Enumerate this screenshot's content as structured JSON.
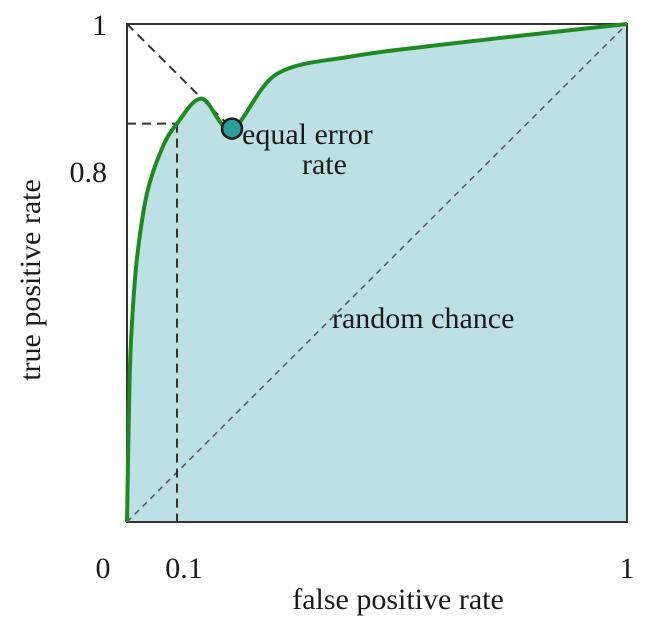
{
  "chart_data": {
    "type": "line",
    "title": "",
    "xlabel": "false positive rate",
    "ylabel": "true positive rate",
    "xlim": [
      0,
      1
    ],
    "ylim": [
      0,
      1
    ],
    "x_ticks": [
      "0",
      "0.1",
      "1"
    ],
    "y_ticks": [
      "1",
      "0.8"
    ],
    "grid": false,
    "series": [
      {
        "color": "#1f8a1f",
        "fill": "#bde0e4",
        "x": [
          0,
          0.005,
          0.01,
          0.02,
          0.04,
          0.07,
          0.1,
          0.15,
          0.21,
          0.3,
          0.45,
          0.6,
          0.8,
          1.0
        ],
        "y": [
          0,
          0.28,
          0.4,
          0.53,
          0.66,
          0.75,
          0.8,
          0.85,
          0.79,
          0.9,
          0.935,
          0.955,
          0.978,
          1.0
        ]
      }
    ],
    "reference_lines": {
      "random_chance": {
        "from": [
          0,
          0
        ],
        "to": [
          1,
          1
        ]
      },
      "equal_error_diagonal": {
        "from": [
          0,
          1
        ],
        "to": [
          1,
          0
        ]
      },
      "guide_x": 0.1,
      "guide_y": 0.8
    },
    "equal_error_point": {
      "x": 0.21,
      "y": 0.79,
      "color": "#2a9d9a"
    },
    "annotations": {
      "equal_error_line1": "equal error",
      "equal_error_line2": "rate",
      "random_chance": "random chance"
    }
  }
}
